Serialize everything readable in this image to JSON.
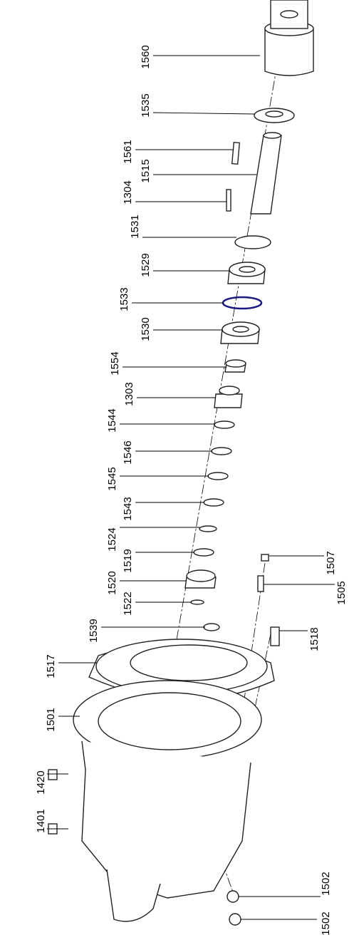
{
  "callouts": [
    "1560",
    "1535",
    "1561",
    "1515",
    "1304",
    "1531",
    "1529",
    "1533",
    "1530",
    "1554",
    "1303",
    "1544",
    "1546",
    "1545",
    "1543",
    "1524",
    "1519",
    "1520",
    "1522",
    "1539",
    "1507",
    "1505",
    "1518",
    "1517",
    "1501",
    "1420",
    "1401",
    "1502",
    "1502"
  ]
}
